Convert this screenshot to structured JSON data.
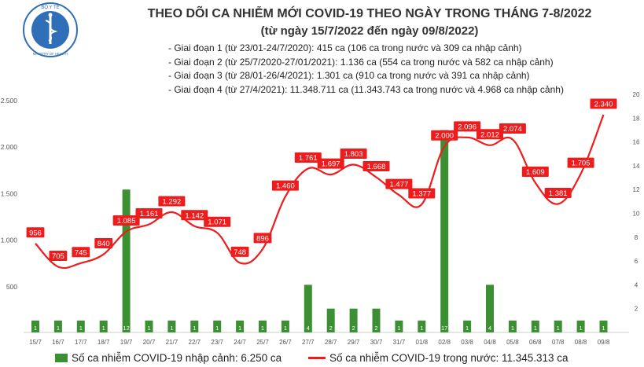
{
  "header": {
    "logo_top_text": "BỘ Y TẾ",
    "logo_bottom_text": "MINISTRY OF HEALTH",
    "title": "THEO DÕI CA NHIỄM MỚI COVID-19 THEO NGÀY TRONG THÁNG 7-8/2022",
    "subtitle": "(từ ngày 15/7/2022 đến ngày 09/8/2022)"
  },
  "stages": [
    "- Giai đoạn 1 (từ 23/01-24/7/2020): 415 ca (106 ca trong nước và 309 ca nhập cảnh)",
    "- Giai đoạn 2 (từ 25/7/2020-27/01/2021): 1.136 ca (554 ca trong nước và 582 ca nhập cảnh)",
    "- Giai đoạn 3 (từ 28/01-26/4/2021): 1.301 ca (910 ca trong nước và 391 ca nhập cảnh)",
    "- Giai đoạn 4 (từ 27/4/2021): 11.348.711 ca (11.343.743 ca trong nước và 4.968 ca nhập cảnh)"
  ],
  "legend": {
    "bar_label": "Số ca nhiễm COVID-19 nhập cảnh: 6.250 ca",
    "line_label": "Số ca nhiễm COVID-19 trong nước: 11.345.313 ca"
  },
  "colors": {
    "bar": "#3d8f33",
    "line": "#ee1c1c",
    "label_bg": "#ee1c1c",
    "label_text": "#ffffff",
    "text": "#333333"
  },
  "chart_data": {
    "type": "bar+line",
    "categories": [
      "15/7",
      "16/7",
      "17/7",
      "18/7",
      "19/7",
      "20/7",
      "21/7",
      "22/7",
      "23/7",
      "24/7",
      "25/7",
      "26/7",
      "27/7",
      "28/7",
      "29/7",
      "30/7",
      "31/7",
      "01/8",
      "02/8",
      "03/8",
      "04/8",
      "05/8",
      "06/8",
      "07/8",
      "08/8",
      "09/8"
    ],
    "bar_series": {
      "name": "Số ca nhiễm COVID-19 nhập cảnh",
      "axis": "right",
      "values": [
        1,
        1,
        1,
        1,
        12,
        1,
        1,
        1,
        1,
        1,
        1,
        1,
        4,
        2,
        2,
        2,
        1,
        1,
        17,
        1,
        4,
        1,
        1,
        1,
        1,
        1
      ],
      "labels": [
        "1",
        "1",
        "1",
        "1",
        "12",
        "1",
        "1",
        "1",
        "1",
        "1",
        "1",
        "1",
        "4",
        "2",
        "2",
        "2",
        "1",
        "1",
        "17",
        "1",
        "4",
        "1",
        "1",
        "1",
        "1",
        "1"
      ]
    },
    "line_series": {
      "name": "Số ca nhiễm COVID-19 trong nước",
      "axis": "left",
      "values": [
        956,
        705,
        745,
        840,
        1085,
        1161,
        1292,
        1142,
        1071,
        748,
        896,
        1460,
        1761,
        1697,
        1803,
        1668,
        1477,
        1377,
        2000,
        2096,
        2012,
        2074,
        1609,
        1381,
        1705,
        2340
      ],
      "labels": [
        "956",
        "705",
        "745",
        "840",
        "1.085",
        "1.161",
        "1.292",
        "1.142",
        "1.071",
        "748",
        "896",
        "1.460",
        "1.761",
        "1.697",
        "1.803",
        "1.668",
        "1.477",
        "1.377",
        "2.000",
        "2.096",
        "2.012",
        "2.074",
        "1.609",
        "1.381",
        "1.705",
        "2.340"
      ]
    },
    "left_axis": {
      "min": 0,
      "max": 2500,
      "ticks": [
        500,
        1000,
        1500,
        2000,
        2500
      ],
      "tick_labels": [
        "500",
        "1.000",
        "1.500",
        "2.000",
        "2.500"
      ]
    },
    "right_axis": {
      "min": 0,
      "max": 20,
      "ticks": [
        2,
        4,
        6,
        8,
        10,
        12,
        14,
        16,
        18,
        20
      ],
      "tick_labels": [
        "2",
        "4",
        "6",
        "8",
        "10",
        "12",
        "14",
        "16",
        "18",
        "20"
      ]
    },
    "grid": false,
    "legend_position": "bottom"
  }
}
